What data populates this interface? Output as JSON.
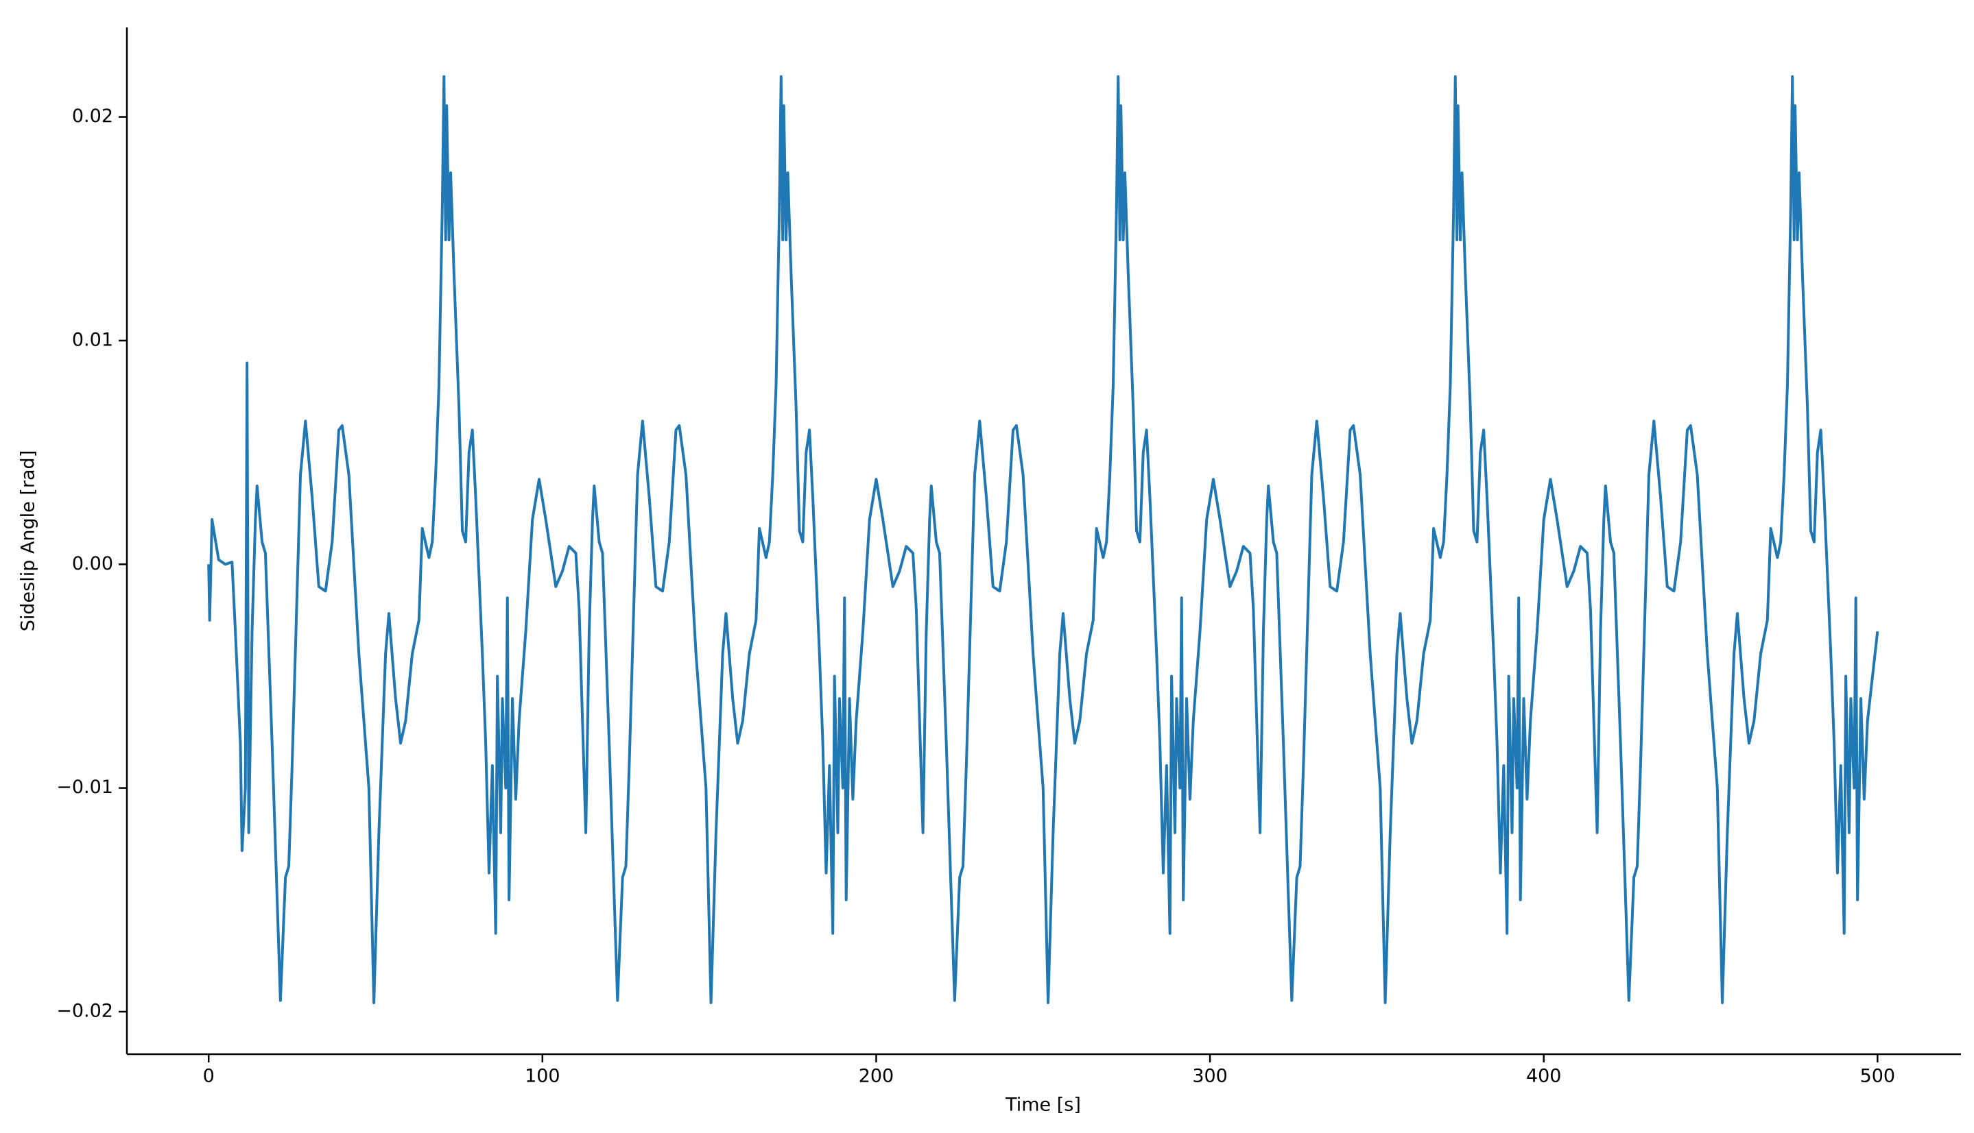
{
  "chart_data": {
    "type": "line",
    "xlabel": "Time [s]",
    "ylabel": "Sideslip Angle [rad]",
    "color": "#1f77b4",
    "xlim": [
      -24.5,
      525
    ],
    "ylim": [
      -0.0219,
      0.024
    ],
    "xticks": [
      0,
      100,
      200,
      300,
      400,
      500
    ],
    "yticks": [
      {
        "value": -0.02,
        "label": "−0.02"
      },
      {
        "value": -0.01,
        "label": "−0.01"
      },
      {
        "value": 0,
        "label": "0.00"
      },
      0.01,
      0.02
    ],
    "x": [
      0,
      0.3,
      1,
      3,
      5,
      7,
      8,
      9.5,
      10,
      11,
      11.5,
      12,
      13,
      14,
      14.5,
      16,
      17,
      19,
      21.5,
      23,
      24,
      25,
      27.5,
      29,
      31,
      33,
      35,
      37,
      39,
      40,
      42,
      45,
      48,
      49.5,
      51,
      53,
      54,
      56,
      57.5,
      59,
      61,
      63,
      64,
      66,
      67,
      68,
      69,
      70,
      70.5,
      71,
      71.3,
      72,
      72.5,
      73.5,
      75,
      76,
      77,
      78,
      79,
      80,
      82,
      83,
      84,
      85,
      86,
      86.5,
      87.5,
      88,
      89,
      89.5,
      90,
      91,
      92,
      93,
      95,
      97,
      99,
      101,
      103,
      104,
      106,
      108,
      110,
      111,
      112,
      113,
      114,
      115,
      115.5,
      117,
      118,
      120,
      122.5,
      124,
      125,
      126,
      128.5,
      130,
      132,
      134,
      136,
      138,
      140,
      141,
      143,
      146,
      149,
      150.5,
      152,
      154,
      155,
      157,
      158.5,
      160,
      162,
      164,
      165,
      167,
      168,
      169,
      170,
      171,
      171.5,
      172,
      172.3,
      173,
      173.5,
      174.5,
      176,
      177,
      178,
      179,
      180,
      181,
      183,
      184,
      185,
      186,
      187,
      187.5,
      188.5,
      189,
      190,
      190.5,
      191,
      192,
      193,
      194,
      196,
      198,
      200,
      202,
      204,
      205,
      207,
      209,
      211,
      212,
      213,
      214,
      215,
      216,
      216.5,
      218,
      219,
      221,
      223.5,
      225,
      226,
      227,
      229.5,
      231,
      233,
      235,
      237,
      239,
      241,
      242,
      244,
      247,
      250,
      251.5,
      253,
      255,
      256,
      258,
      259.5,
      261,
      263,
      265,
      266,
      268,
      269,
      270,
      271,
      272,
      272.5,
      273,
      273.3,
      274,
      274.5,
      275.5,
      277,
      278,
      279,
      280,
      281,
      282,
      284,
      285,
      286,
      287,
      288,
      288.5,
      289.5,
      290,
      291,
      291.5,
      292,
      293,
      294,
      295,
      297,
      299,
      301,
      303,
      305,
      306,
      308,
      310,
      312,
      313,
      314,
      315,
      316,
      317,
      317.5,
      319,
      320,
      322,
      324.5,
      326,
      327,
      328,
      330.5,
      332,
      334,
      336,
      338,
      340,
      342,
      343,
      345,
      348,
      351,
      352.5,
      354,
      356,
      357,
      359,
      360.5,
      362,
      364,
      366,
      367,
      369,
      370,
      371,
      372,
      373,
      373.5,
      374,
      374.3,
      375,
      375.5,
      376.5,
      378,
      379,
      380,
      381,
      382,
      383,
      385,
      386,
      387,
      388,
      389,
      389.5,
      390.5,
      391,
      392,
      392.5,
      393,
      394,
      395,
      396,
      398,
      400,
      402,
      404,
      406,
      407,
      409,
      411,
      413,
      414,
      415,
      416,
      417,
      418,
      418.5,
      420,
      421,
      423,
      425.5,
      427,
      428,
      429,
      431.5,
      433,
      435,
      437,
      439,
      441,
      443,
      444,
      446,
      449,
      452,
      453.5,
      455,
      457,
      458,
      460,
      461.5,
      463,
      465,
      467,
      468,
      470,
      471,
      472,
      473,
      474,
      474.5,
      475,
      475.3,
      476,
      476.5,
      477.5,
      479,
      480,
      481,
      482,
      483,
      484,
      486,
      487,
      488,
      489,
      490,
      490.5,
      491.5,
      492,
      493,
      493.5,
      494,
      495,
      496,
      497,
      500
    ],
    "values": [
      0,
      -0.0025,
      0.002,
      0.0002,
      0,
      0.0001,
      -0.003,
      -0.008,
      -0.0128,
      -0.01,
      0.009,
      -0.012,
      -0.003,
      0.002,
      0.0035,
      0.001,
      0.0005,
      -0.008,
      -0.0195,
      -0.014,
      -0.0135,
      -0.009,
      0.004,
      0.0064,
      0.003,
      -0.001,
      -0.0012,
      0.001,
      0.006,
      0.0062,
      0.004,
      -0.004,
      -0.01,
      -0.0196,
      -0.012,
      -0.004,
      -0.0022,
      -0.006,
      -0.008,
      -0.007,
      -0.004,
      -0.0025,
      0.0016,
      0.0003,
      0.001,
      0.004,
      0.008,
      0.016,
      0.0218,
      0.0145,
      0.0205,
      0.0145,
      0.0175,
      0.013,
      0.007,
      0.0015,
      0.001,
      0.005,
      0.006,
      0.003,
      -0.004,
      -0.008,
      -0.0138,
      -0.009,
      -0.0165,
      -0.005,
      -0.012,
      -0.006,
      -0.01,
      -0.0015,
      -0.015,
      -0.006,
      -0.0105,
      -0.007,
      -0.003,
      0.002,
      0.0038,
      0.002,
      0,
      -0.001,
      -0.0003,
      0.0008,
      0.0005,
      -0.002,
      -0.007,
      -0.012,
      -0.003,
      0.002,
      0.0035,
      0.001,
      0.0005,
      -0.008,
      -0.0195,
      -0.014,
      -0.0135,
      -0.009,
      0.004,
      0.0064,
      0.003,
      -0.001,
      -0.0012,
      0.001,
      0.006,
      0.0062,
      0.004,
      -0.004,
      -0.01,
      -0.0196,
      -0.012,
      -0.004,
      -0.0022,
      -0.006,
      -0.008,
      -0.007,
      -0.004,
      -0.0025,
      0.0016,
      0.0003,
      0.001,
      0.004,
      0.008,
      0.016,
      0.0218,
      0.0145,
      0.0205,
      0.0145,
      0.0175,
      0.013,
      0.007,
      0.0015,
      0.001,
      0.005,
      0.006,
      0.003,
      -0.004,
      -0.008,
      -0.0138,
      -0.009,
      -0.0165,
      -0.005,
      -0.012,
      -0.006,
      -0.01,
      -0.0015,
      -0.015,
      -0.006,
      -0.0105,
      -0.007,
      -0.003,
      0.002,
      0.0038,
      0.002,
      0,
      -0.001,
      -0.0003,
      0.0008,
      0.0005,
      -0.002,
      -0.007,
      -0.012,
      -0.003,
      0.002,
      0.0035,
      0.001,
      0.0005,
      -0.008,
      -0.0195,
      -0.014,
      -0.0135,
      -0.009,
      0.004,
      0.0064,
      0.003,
      -0.001,
      -0.0012,
      0.001,
      0.006,
      0.0062,
      0.004,
      -0.004,
      -0.01,
      -0.0196,
      -0.012,
      -0.004,
      -0.0022,
      -0.006,
      -0.008,
      -0.007,
      -0.004,
      -0.0025,
      0.0016,
      0.0003,
      0.001,
      0.004,
      0.008,
      0.016,
      0.0218,
      0.0145,
      0.0205,
      0.0145,
      0.0175,
      0.013,
      0.007,
      0.0015,
      0.001,
      0.005,
      0.006,
      0.003,
      -0.004,
      -0.008,
      -0.0138,
      -0.009,
      -0.0165,
      -0.005,
      -0.012,
      -0.006,
      -0.01,
      -0.0015,
      -0.015,
      -0.006,
      -0.0105,
      -0.007,
      -0.003,
      0.002,
      0.0038,
      0.002,
      0,
      -0.001,
      -0.0003,
      0.0008,
      0.0005,
      -0.002,
      -0.007,
      -0.012,
      -0.003,
      0.002,
      0.0035,
      0.001,
      0.0005,
      -0.008,
      -0.0195,
      -0.014,
      -0.0135,
      -0.009,
      0.004,
      0.0064,
      0.003,
      -0.001,
      -0.0012,
      0.001,
      0.006,
      0.0062,
      0.004,
      -0.004,
      -0.01,
      -0.0196,
      -0.012,
      -0.004,
      -0.0022,
      -0.006,
      -0.008,
      -0.007,
      -0.004,
      -0.0025,
      0.0016,
      0.0003,
      0.001,
      0.004,
      0.008,
      0.016,
      0.0218,
      0.0145,
      0.0205,
      0.0145,
      0.0175,
      0.013,
      0.007,
      0.0015,
      0.001,
      0.005,
      0.006,
      0.003,
      -0.004,
      -0.008,
      -0.0138,
      -0.009,
      -0.0165,
      -0.005,
      -0.012,
      -0.006,
      -0.01,
      -0.0015,
      -0.015,
      -0.006,
      -0.0105,
      -0.007,
      -0.003,
      0.002,
      0.0038,
      0.002,
      0,
      -0.001,
      -0.0003,
      0.0008,
      0.0005,
      -0.002,
      -0.007,
      -0.012,
      -0.003,
      0.002,
      0.0035,
      0.001,
      0.0005,
      -0.008,
      -0.0195,
      -0.014,
      -0.0135,
      -0.009,
      0.004,
      0.0064,
      0.003,
      -0.001,
      -0.0012,
      0.001,
      0.006,
      0.0062,
      0.004,
      -0.004,
      -0.01,
      -0.0196,
      -0.012,
      -0.004,
      -0.0022,
      -0.006,
      -0.008,
      -0.007,
      -0.004,
      -0.0025,
      0.0016,
      0.0003,
      0.001,
      0.004,
      0.008,
      0.016,
      0.0218,
      0.0145,
      0.0205,
      0.0145,
      0.0175,
      0.013,
      0.007,
      0.0015,
      0.001,
      0.005,
      0.006,
      0.003,
      -0.004,
      -0.008,
      -0.0138,
      -0.009,
      -0.0165,
      -0.005,
      -0.012,
      -0.006,
      -0.01,
      -0.0015,
      -0.015,
      -0.006,
      -0.0105,
      -0.007,
      -0.003
    ]
  }
}
